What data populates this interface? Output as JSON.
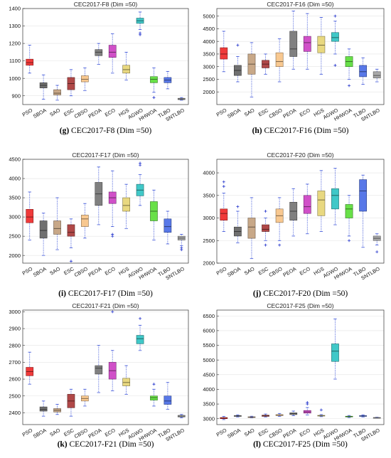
{
  "chart_data": [
    {
      "type": "box",
      "title": "CEC2017-F8 (Dim =50)",
      "caption_letter": "(g)",
      "caption_text": "CEC2017-F8 (Dim =50)",
      "categories": [
        "PSO",
        "SBOA",
        "SAO",
        "ESC",
        "CBSO",
        "PEOA",
        "ECO",
        "HGS",
        "AGWO",
        "HHWOA",
        "TLBO",
        "SNTLBO"
      ],
      "ylim": [
        850,
        1400
      ],
      "yticks": [
        900,
        1000,
        1100,
        1200,
        1300,
        1400
      ],
      "boxes": [
        {
          "min": 1030,
          "q1": 1075,
          "median": 1090,
          "q3": 1110,
          "max": 1190,
          "outliers": []
        },
        {
          "min": 880,
          "q1": 945,
          "median": 960,
          "q3": 975,
          "max": 1020,
          "outliers": []
        },
        {
          "min": 875,
          "q1": 905,
          "median": 915,
          "q3": 935,
          "max": 960,
          "outliers": []
        },
        {
          "min": 900,
          "q1": 935,
          "median": 970,
          "q3": 1005,
          "max": 1050,
          "outliers": []
        },
        {
          "min": 930,
          "q1": 980,
          "median": 995,
          "q3": 1015,
          "max": 1060,
          "outliers": []
        },
        {
          "min": 1080,
          "q1": 1130,
          "median": 1150,
          "q3": 1165,
          "max": 1200,
          "outliers": []
        },
        {
          "min": 1030,
          "q1": 1120,
          "median": 1150,
          "q3": 1190,
          "max": 1255,
          "outliers": []
        },
        {
          "min": 990,
          "q1": 1030,
          "median": 1050,
          "q3": 1075,
          "max": 1150,
          "outliers": []
        },
        {
          "min": 1280,
          "q1": 1315,
          "median": 1330,
          "q3": 1345,
          "max": 1380,
          "outliers": [
            1260,
            1250
          ]
        },
        {
          "min": 920,
          "q1": 975,
          "median": 995,
          "q3": 1010,
          "max": 1060,
          "outliers": [
            890
          ]
        },
        {
          "min": 940,
          "q1": 975,
          "median": 990,
          "q3": 1005,
          "max": 1040,
          "outliers": []
        },
        {
          "min": 875,
          "q1": 878,
          "median": 882,
          "q3": 886,
          "max": 890,
          "outliers": []
        }
      ]
    },
    {
      "type": "box",
      "title": "CEC2017-F16 (Dim =50)",
      "caption_letter": "(h)",
      "caption_text": "CEC2017-F16 (Dim =50)",
      "categories": [
        "PSO",
        "SBOA",
        "SAO",
        "ESC",
        "CBSO",
        "PEOA",
        "ECO",
        "HGS",
        "AGWO",
        "HHWOA",
        "TLBO",
        "SNTLBO"
      ],
      "ylim": [
        1500,
        5300
      ],
      "yticks": [
        2000,
        2500,
        3000,
        3500,
        4000,
        4500,
        5000
      ],
      "boxes": [
        {
          "min": 2800,
          "q1": 3300,
          "median": 3500,
          "q3": 3750,
          "max": 4400,
          "outliers": []
        },
        {
          "min": 2400,
          "q1": 2650,
          "median": 2850,
          "q3": 3050,
          "max": 3400,
          "outliers": [
            3850
          ]
        },
        {
          "min": 1800,
          "q1": 2700,
          "median": 3100,
          "q3": 3500,
          "max": 3950,
          "outliers": []
        },
        {
          "min": 2700,
          "q1": 2950,
          "median": 3100,
          "q3": 3250,
          "max": 3500,
          "outliers": []
        },
        {
          "min": 2400,
          "q1": 3000,
          "median": 3200,
          "q3": 3550,
          "max": 4100,
          "outliers": []
        },
        {
          "min": 2900,
          "q1": 3400,
          "median": 3700,
          "q3": 4400,
          "max": 5200,
          "outliers": []
        },
        {
          "min": 2900,
          "q1": 3600,
          "median": 3950,
          "q3": 4200,
          "max": 5100,
          "outliers": []
        },
        {
          "min": 2700,
          "q1": 3550,
          "median": 3850,
          "q3": 4200,
          "max": 4950,
          "outliers": []
        },
        {
          "min": 3500,
          "q1": 4000,
          "median": 4150,
          "q3": 4350,
          "max": 4800,
          "outliers": [
            3050,
            5000
          ]
        },
        {
          "min": 2500,
          "q1": 3000,
          "median": 3200,
          "q3": 3400,
          "max": 3700,
          "outliers": [
            2250
          ]
        },
        {
          "min": 2300,
          "q1": 2600,
          "median": 2800,
          "q3": 3050,
          "max": 3350,
          "outliers": []
        },
        {
          "min": 2400,
          "q1": 2550,
          "median": 2650,
          "q3": 2800,
          "max": 2900,
          "outliers": []
        }
      ]
    },
    {
      "type": "box",
      "title": "CEC2017-F17 (Dim =50)",
      "caption_letter": "(i)",
      "caption_text": "CEC2017-F17 (Dim =50)",
      "categories": [
        "PSO",
        "SBOA",
        "SAO",
        "ESC",
        "CBSO",
        "PEOA",
        "ECO",
        "HGS",
        "AGWO",
        "HHWOA",
        "TLBO",
        "SNTLBO"
      ],
      "ylim": [
        1800,
        4500
      ],
      "yticks": [
        2000,
        2500,
        3000,
        3500,
        4000,
        4500
      ],
      "boxes": [
        {
          "min": 2400,
          "q1": 2850,
          "median": 3000,
          "q3": 3200,
          "max": 3650,
          "outliers": []
        },
        {
          "min": 2000,
          "q1": 2450,
          "median": 2650,
          "q3": 2900,
          "max": 3100,
          "outliers": []
        },
        {
          "min": 2150,
          "q1": 2550,
          "median": 2700,
          "q3": 2900,
          "max": 3500,
          "outliers": []
        },
        {
          "min": 2200,
          "q1": 2500,
          "median": 2600,
          "q3": 2800,
          "max": 2950,
          "outliers": [
            1850
          ]
        },
        {
          "min": 2450,
          "q1": 2750,
          "median": 2950,
          "q3": 3050,
          "max": 3350,
          "outliers": []
        },
        {
          "min": 2800,
          "q1": 3300,
          "median": 3600,
          "q3": 3900,
          "max": 4300,
          "outliers": []
        },
        {
          "min": 2750,
          "q1": 3350,
          "median": 3500,
          "q3": 3650,
          "max": 4200,
          "outliers": [
            2550,
            2500
          ]
        },
        {
          "min": 2700,
          "q1": 3150,
          "median": 3300,
          "q3": 3500,
          "max": 3850,
          "outliers": []
        },
        {
          "min": 3300,
          "q1": 3550,
          "median": 3700,
          "q3": 3850,
          "max": 4100,
          "outliers": [
            4350,
            4400
          ]
        },
        {
          "min": 2400,
          "q1": 2900,
          "median": 3150,
          "q3": 3400,
          "max": 3700,
          "outliers": []
        },
        {
          "min": 2300,
          "q1": 2600,
          "median": 2750,
          "q3": 2950,
          "max": 3150,
          "outliers": []
        },
        {
          "min": 2250,
          "q1": 2400,
          "median": 2450,
          "q3": 2500,
          "max": 2550,
          "outliers": [
            2200,
            2150
          ]
        }
      ]
    },
    {
      "type": "box",
      "title": "CEC2017-F20 (Dim =50)",
      "caption_letter": "(j)",
      "caption_text": "CEC2017-F20 (Dim =50)",
      "categories": [
        "PSO",
        "SBOA",
        "SAO",
        "ESC",
        "CBSO",
        "PEOA",
        "ECO",
        "HGS",
        "AGWO",
        "HHWOA",
        "TLBO",
        "SNTLBO"
      ],
      "ylim": [
        2000,
        4300
      ],
      "yticks": [
        2000,
        2500,
        3000,
        3500,
        4000
      ],
      "boxes": [
        {
          "min": 2700,
          "q1": 2950,
          "median": 3100,
          "q3": 3200,
          "max": 3550,
          "outliers": [
            3700,
            3800
          ]
        },
        {
          "min": 2450,
          "q1": 2600,
          "median": 2700,
          "q3": 2800,
          "max": 3150,
          "outliers": [
            3250
          ]
        },
        {
          "min": 2100,
          "q1": 2550,
          "median": 2800,
          "q3": 3000,
          "max": 3450,
          "outliers": []
        },
        {
          "min": 2500,
          "q1": 2700,
          "median": 2750,
          "q3": 2850,
          "max": 3000,
          "outliers": [
            2400,
            3150
          ]
        },
        {
          "min": 2500,
          "q1": 2900,
          "median": 3050,
          "q3": 3200,
          "max": 3450,
          "outliers": [
            2400
          ]
        },
        {
          "min": 2600,
          "q1": 2950,
          "median": 3150,
          "q3": 3350,
          "max": 3650,
          "outliers": []
        },
        {
          "min": 2650,
          "q1": 3100,
          "median": 3250,
          "q3": 3500,
          "max": 3750,
          "outliers": []
        },
        {
          "min": 2700,
          "q1": 3050,
          "median": 3400,
          "q3": 3600,
          "max": 4050,
          "outliers": []
        },
        {
          "min": 2850,
          "q1": 3200,
          "median": 3500,
          "q3": 3650,
          "max": 4100,
          "outliers": []
        },
        {
          "min": 2600,
          "q1": 3000,
          "median": 3200,
          "q3": 3300,
          "max": 3500,
          "outliers": [
            2500
          ]
        },
        {
          "min": 2350,
          "q1": 3150,
          "median": 3600,
          "q3": 3850,
          "max": 3950,
          "outliers": []
        },
        {
          "min": 2400,
          "q1": 2500,
          "median": 2550,
          "q3": 2600,
          "max": 2650,
          "outliers": [
            2250
          ]
        }
      ]
    },
    {
      "type": "box",
      "title": "CEC2017-F21 (Dim =50)",
      "caption_letter": "(k)",
      "caption_text": "CEC2017-F21 (Dim =50)",
      "categories": [
        "PSO",
        "SBOA",
        "SAO",
        "ESC",
        "CBSO",
        "PEOA",
        "ECO",
        "HGS",
        "AGWO",
        "HHWOA",
        "TLBO",
        "SNTLBO"
      ],
      "ylim": [
        2330,
        3010
      ],
      "yticks": [
        2400,
        2500,
        2600,
        2700,
        2800,
        2900,
        3000
      ],
      "boxes": [
        {
          "min": 2570,
          "q1": 2620,
          "median": 2645,
          "q3": 2670,
          "max": 2760,
          "outliers": []
        },
        {
          "min": 2380,
          "q1": 2410,
          "median": 2420,
          "q3": 2435,
          "max": 2470,
          "outliers": []
        },
        {
          "min": 2390,
          "q1": 2405,
          "median": 2415,
          "q3": 2425,
          "max": 2450,
          "outliers": []
        },
        {
          "min": 2380,
          "q1": 2430,
          "median": 2470,
          "q3": 2510,
          "max": 2540,
          "outliers": []
        },
        {
          "min": 2440,
          "q1": 2470,
          "median": 2485,
          "q3": 2500,
          "max": 2540,
          "outliers": []
        },
        {
          "min": 2520,
          "q1": 2630,
          "median": 2665,
          "q3": 2680,
          "max": 2800,
          "outliers": []
        },
        {
          "min": 2530,
          "q1": 2600,
          "median": 2650,
          "q3": 2700,
          "max": 2770,
          "outliers": [
            3000
          ]
        },
        {
          "min": 2510,
          "q1": 2560,
          "median": 2580,
          "q3": 2605,
          "max": 2680,
          "outliers": []
        },
        {
          "min": 2770,
          "q1": 2810,
          "median": 2840,
          "q3": 2860,
          "max": 2920,
          "outliers": [
            2960
          ]
        },
        {
          "min": 2440,
          "q1": 2475,
          "median": 2490,
          "q3": 2500,
          "max": 2540,
          "outliers": [
            2570
          ]
        },
        {
          "min": 2420,
          "q1": 2450,
          "median": 2470,
          "q3": 2500,
          "max": 2580,
          "outliers": []
        },
        {
          "min": 2370,
          "q1": 2375,
          "median": 2380,
          "q3": 2385,
          "max": 2390,
          "outliers": []
        }
      ]
    },
    {
      "type": "box",
      "title": "CEC2017-F25 (Dim =50)",
      "caption_letter": "(l)",
      "caption_text": "CEC2017-F25 (Dim =50)",
      "categories": [
        "PSO",
        "SBOA",
        "SAO",
        "ESC",
        "CBSO",
        "PEOA",
        "ECO",
        "HGS",
        "AGWO",
        "HHWOA",
        "TLBO",
        "SNTLBO"
      ],
      "ylim": [
        2800,
        6700
      ],
      "yticks": [
        3000,
        3500,
        4000,
        4500,
        5000,
        5500,
        6000,
        6500
      ],
      "boxes": [
        {
          "min": 2970,
          "q1": 3000,
          "median": 3020,
          "q3": 3040,
          "max": 3080,
          "outliers": []
        },
        {
          "min": 3060,
          "q1": 3080,
          "median": 3090,
          "q3": 3105,
          "max": 3130,
          "outliers": []
        },
        {
          "min": 3030,
          "q1": 3045,
          "median": 3055,
          "q3": 3065,
          "max": 3085,
          "outliers": []
        },
        {
          "min": 3060,
          "q1": 3080,
          "median": 3100,
          "q3": 3120,
          "max": 3160,
          "outliers": []
        },
        {
          "min": 3080,
          "q1": 3105,
          "median": 3120,
          "q3": 3140,
          "max": 3180,
          "outliers": []
        },
        {
          "min": 3100,
          "q1": 3140,
          "median": 3170,
          "q3": 3200,
          "max": 3260,
          "outliers": []
        },
        {
          "min": 3130,
          "q1": 3190,
          "median": 3230,
          "q3": 3280,
          "max": 3380,
          "outliers": [
            3500,
            3550
          ]
        },
        {
          "min": 3070,
          "q1": 3090,
          "median": 3100,
          "q3": 3115,
          "max": 3140,
          "outliers": [
            3300
          ]
        },
        {
          "min": 4350,
          "q1": 4950,
          "median": 5300,
          "q3": 5550,
          "max": 6400,
          "outliers": []
        },
        {
          "min": 3040,
          "q1": 3060,
          "median": 3070,
          "q3": 3085,
          "max": 3110,
          "outliers": []
        },
        {
          "min": 3060,
          "q1": 3080,
          "median": 3090,
          "q3": 3105,
          "max": 3130,
          "outliers": []
        },
        {
          "min": 3020,
          "q1": 3030,
          "median": 3035,
          "q3": 3040,
          "max": 3050,
          "outliers": []
        }
      ]
    }
  ],
  "colors": [
    "#f03a3a",
    "#707070",
    "#c8a888",
    "#b04848",
    "#f8c890",
    "#808080",
    "#d050c8",
    "#e8d880",
    "#40c8c8",
    "#68e048",
    "#5878e8",
    "#a8a8a8"
  ]
}
